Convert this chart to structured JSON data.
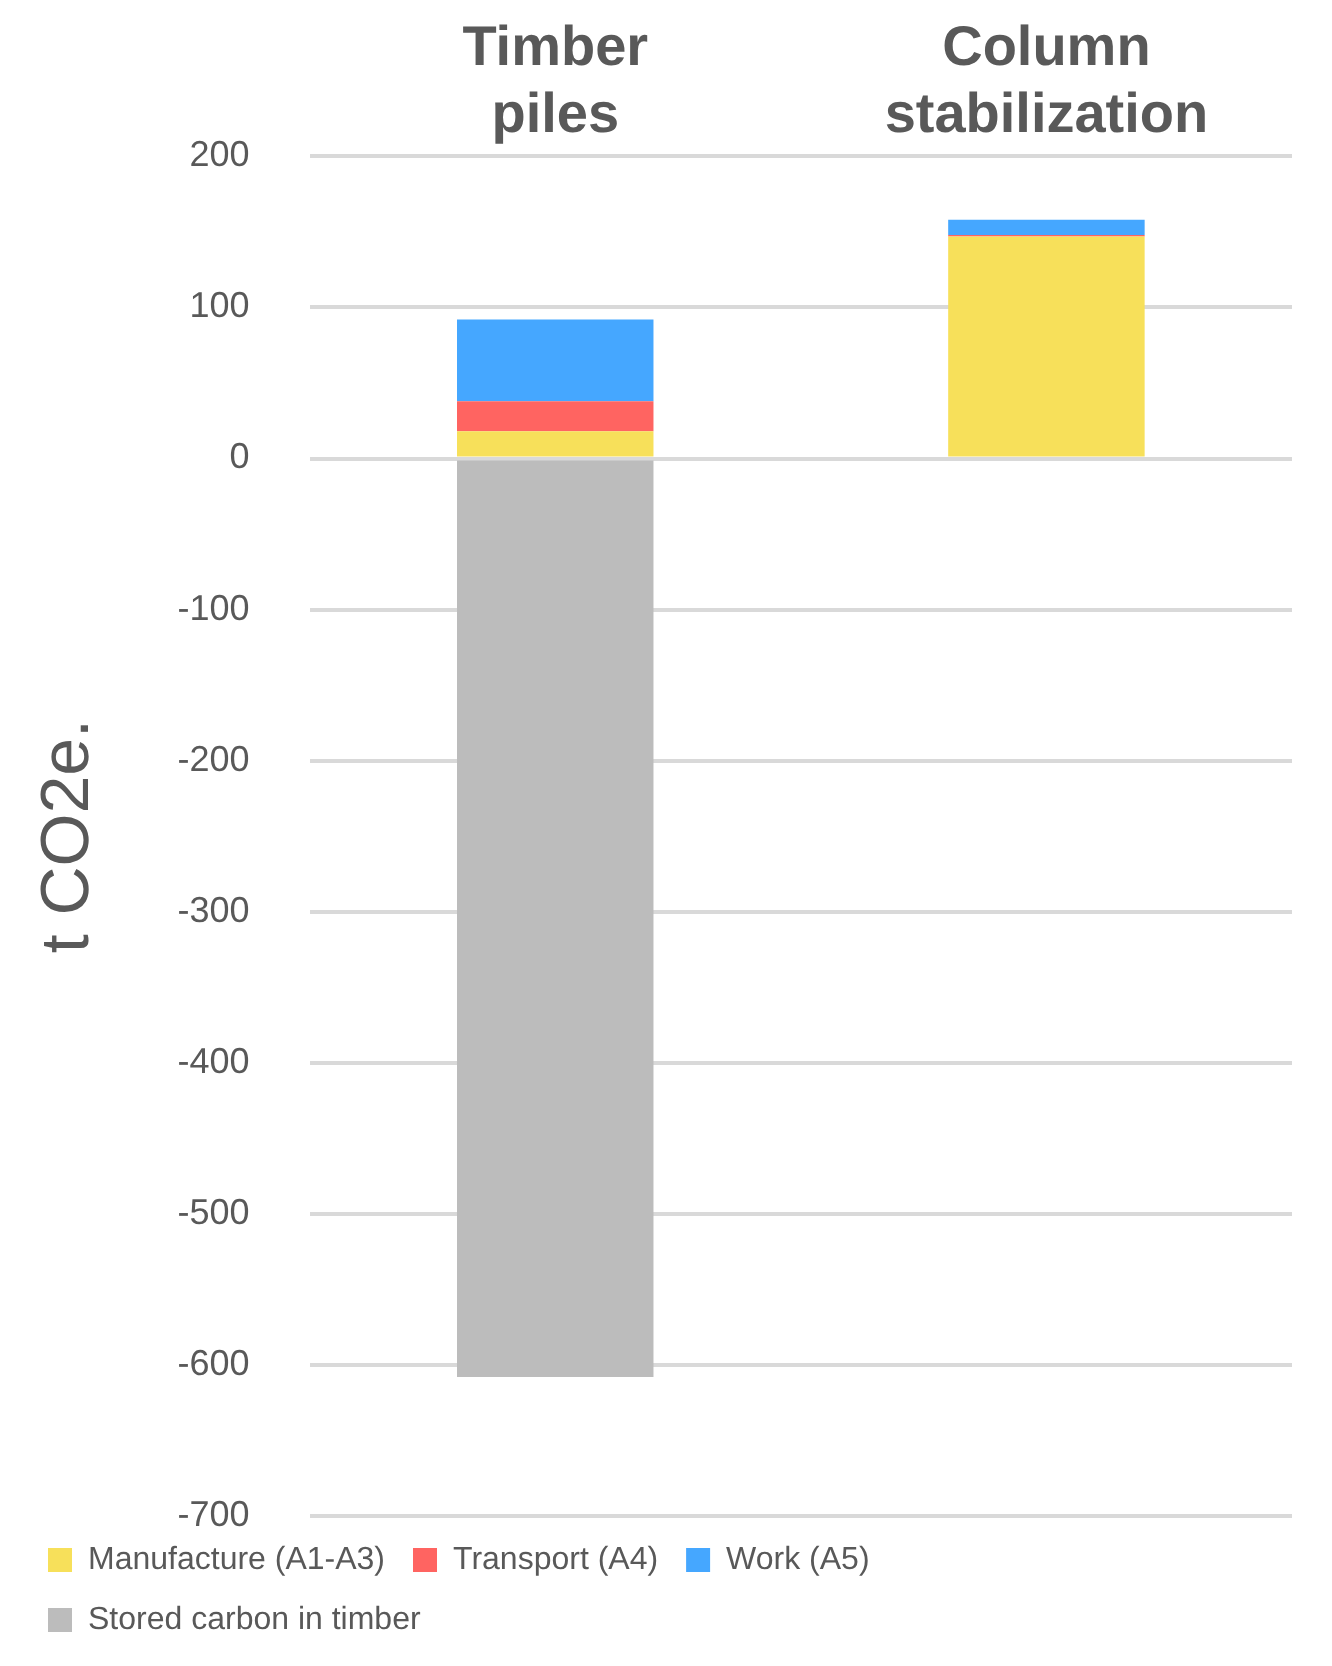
{
  "chart_data": {
    "type": "bar",
    "stacked": true,
    "ylabel": "t CO2e.",
    "categories": [
      "Timber piles",
      "Column stabilization"
    ],
    "series": [
      {
        "name": "Manufacture (A1-A3)",
        "color": "#f7e05a",
        "values": [
          18,
          147
        ]
      },
      {
        "name": "Transport (A4)",
        "color": "#ff6461",
        "values": [
          20,
          1
        ]
      },
      {
        "name": "Work (A5)",
        "color": "#45a7ff",
        "values": [
          54,
          10
        ]
      },
      {
        "name": "Stored carbon in timber",
        "color": "#bcbcbc",
        "values": [
          -608,
          null
        ]
      }
    ],
    "ylim": [
      -700,
      200
    ],
    "yticks": [
      -700,
      -600,
      -500,
      -400,
      -300,
      -200,
      -100,
      0,
      100,
      200
    ],
    "grid": "y",
    "legend": "bottom"
  }
}
